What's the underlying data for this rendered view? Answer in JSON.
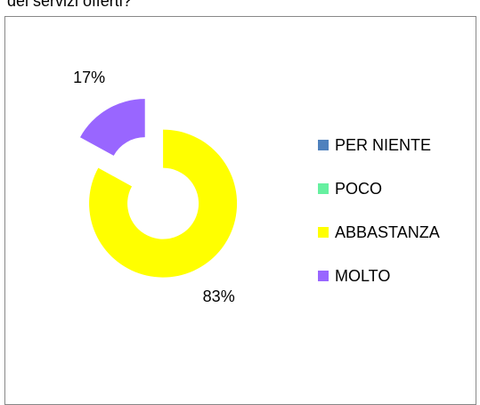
{
  "chart_data": {
    "type": "donut",
    "subtitle": "dei servizi offerti?",
    "categories": [
      "PER NIENTE",
      "POCO",
      "ABBASTANZA",
      "MOLTO"
    ],
    "values": [
      0,
      0,
      83,
      17
    ],
    "value_labels": [
      null,
      null,
      "83%",
      "17%"
    ],
    "colors": [
      "#4f81bd",
      "#66f0a0",
      "#ffff00",
      "#9966ff"
    ],
    "legend": "right"
  }
}
